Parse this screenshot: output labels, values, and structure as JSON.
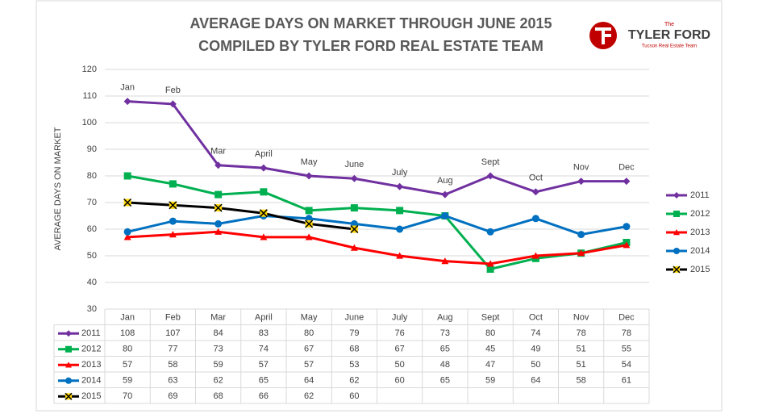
{
  "chart_data": {
    "type": "line",
    "title": "AVERAGE DAYS ON MARKET THROUGH JUNE 2015",
    "subtitle": "COMPILED BY TYLER FORD REAL ESTATE TEAM",
    "y_label": "AVERAGE DAYS ON MARKET",
    "categories": [
      "Jan",
      "Feb",
      "Mar",
      "April",
      "May",
      "June",
      "July",
      "Aug",
      "Sept",
      "Oct",
      "Nov",
      "Dec"
    ],
    "series": [
      {
        "name": "2011",
        "color": "#7030a0",
        "marker": "diamond",
        "values": [
          108,
          107,
          84,
          83,
          80,
          79,
          76,
          73,
          80,
          74,
          78,
          78
        ]
      },
      {
        "name": "2012",
        "color": "#00b050",
        "marker": "square",
        "values": [
          80,
          77,
          73,
          74,
          67,
          68,
          67,
          65,
          45,
          49,
          51,
          55
        ]
      },
      {
        "name": "2013",
        "color": "#ff0000",
        "marker": "triangle",
        "values": [
          57,
          58,
          59,
          57,
          57,
          53,
          50,
          48,
          47,
          50,
          51,
          54
        ]
      },
      {
        "name": "2014",
        "color": "#0070c0",
        "marker": "circle",
        "values": [
          59,
          63,
          62,
          65,
          64,
          62,
          60,
          65,
          59,
          64,
          58,
          61
        ]
      },
      {
        "name": "2015",
        "color": "#000000",
        "marker": "x",
        "values": [
          70,
          69,
          68,
          66,
          62,
          60,
          null,
          null,
          null,
          null,
          null,
          null
        ]
      }
    ],
    "ylim": [
      30,
      120
    ],
    "yticks": [
      30,
      40,
      50,
      60,
      70,
      80,
      90,
      100,
      110,
      120
    ],
    "grid": true,
    "legend": "right",
    "data_table": true
  },
  "logo": {
    "small": "The",
    "name": "TYLER FORD",
    "tagline": "Tucson Real Estate Team"
  }
}
